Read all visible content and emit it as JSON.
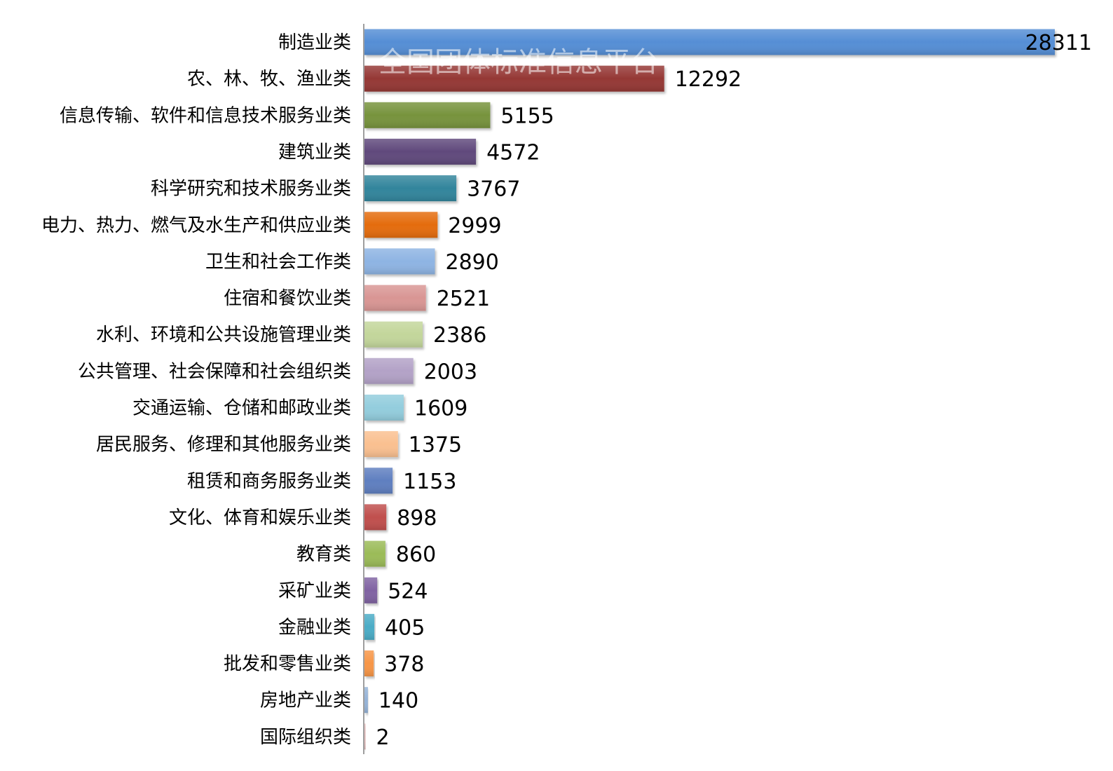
{
  "watermark": "全国团体标准信息平台",
  "chart_data": {
    "type": "bar",
    "orientation": "horizontal",
    "categories": [
      "制造业类",
      "农、林、牧、渔业类",
      "信息传输、软件和信息技术服务业类",
      "建筑业类",
      "科学研究和技术服务业类",
      "电力、热力、燃气及水生产和供应业类",
      "卫生和社会工作类",
      "住宿和餐饮业类",
      "水利、环境和公共设施管理业类",
      "公共管理、社会保障和社会组织类",
      "交通运输、仓储和邮政业类",
      "居民服务、修理和其他服务业类",
      "租赁和商务服务业类",
      "文化、体育和娱乐业类",
      "教育类",
      "采矿业类",
      "金融业类",
      "批发和零售业类",
      "房地产业类",
      "国际组织类"
    ],
    "values": [
      28311,
      12292,
      5155,
      4572,
      3767,
      2999,
      2890,
      2521,
      2386,
      2003,
      1609,
      1375,
      1153,
      898,
      860,
      524,
      405,
      378,
      140,
      2
    ],
    "colors": [
      "#558ED5",
      "#953735",
      "#77933C",
      "#604A7B",
      "#31859C",
      "#E46C0A",
      "#8EB4E3",
      "#D99694",
      "#C3D69B",
      "#B3A2C7",
      "#93CDDD",
      "#FAC090",
      "#5F7FC0",
      "#C0504D",
      "#9BBB59",
      "#8064A2",
      "#4BACC6",
      "#F79646",
      "#95B3D7",
      "#E6B9B8"
    ],
    "xlim": [
      0,
      28311
    ],
    "grid": false,
    "legend": "none",
    "data_labels": true
  }
}
